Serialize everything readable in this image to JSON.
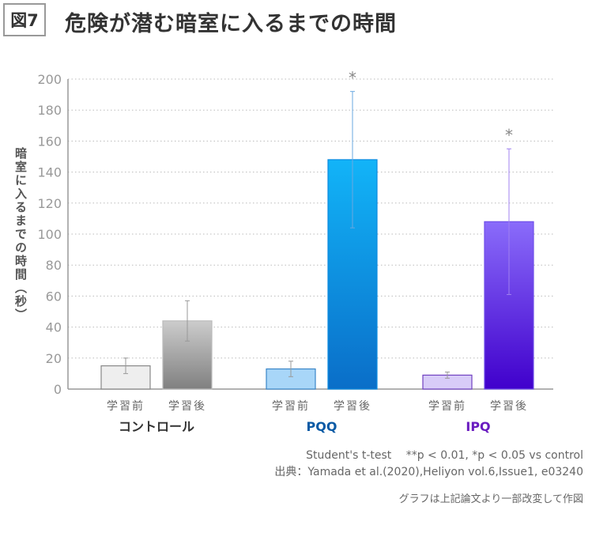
{
  "figure_label": "図7",
  "chart_data": {
    "type": "bar",
    "title": "危険が潜む暗室に入るまでの時間",
    "ylabel": "暗室に入るまでの時間（秒）",
    "ylim": [
      0,
      200
    ],
    "yticks": [
      0,
      20,
      40,
      60,
      80,
      100,
      120,
      140,
      160,
      180,
      200
    ],
    "grid": "horizontal dotted",
    "groups": [
      {
        "name": "コントロール",
        "color": "#333333",
        "bars": [
          {
            "label": "学習前",
            "value": 15,
            "error": 5,
            "fill_top": "#eeeeee",
            "fill_bottom": "#eeeeee",
            "stroke": "#888888",
            "significance": ""
          },
          {
            "label": "学習後",
            "value": 44,
            "error": 13,
            "fill_top": "#cccccc",
            "fill_bottom": "#808080",
            "stroke": "#bbbbbb",
            "significance": ""
          }
        ]
      },
      {
        "name": "PQQ",
        "color": "#0a5aa5",
        "bars": [
          {
            "label": "学習前",
            "value": 13,
            "error": 5,
            "fill_top": "#a8d6f8",
            "fill_bottom": "#a8d6f8",
            "stroke": "#3a86c8",
            "significance": ""
          },
          {
            "label": "学習後",
            "value": 148,
            "error": 44,
            "fill_top": "#12b4f8",
            "fill_bottom": "#0a6ec8",
            "stroke": "#0a8ae0",
            "significance": "*"
          }
        ]
      },
      {
        "name": "IPQ",
        "color": "#6a1cc0",
        "bars": [
          {
            "label": "学習前",
            "value": 9,
            "error": 2,
            "fill_top": "#d8ccf8",
            "fill_bottom": "#d8ccf8",
            "stroke": "#7040c0",
            "significance": ""
          },
          {
            "label": "学習後",
            "value": 108,
            "error": 47,
            "fill_top": "#8a6cfa",
            "fill_bottom": "#4000cc",
            "stroke": "#7050e8",
            "significance": "*"
          }
        ]
      }
    ]
  },
  "notes": {
    "test": "Student's t-test　 **p < 0.01, *p < 0.05 vs control",
    "source": "出典：Yamada et al.(2020),Heliyon vol.6,Issue1, e03240",
    "modified": "グラフは上記論文より一部改変して作図"
  }
}
